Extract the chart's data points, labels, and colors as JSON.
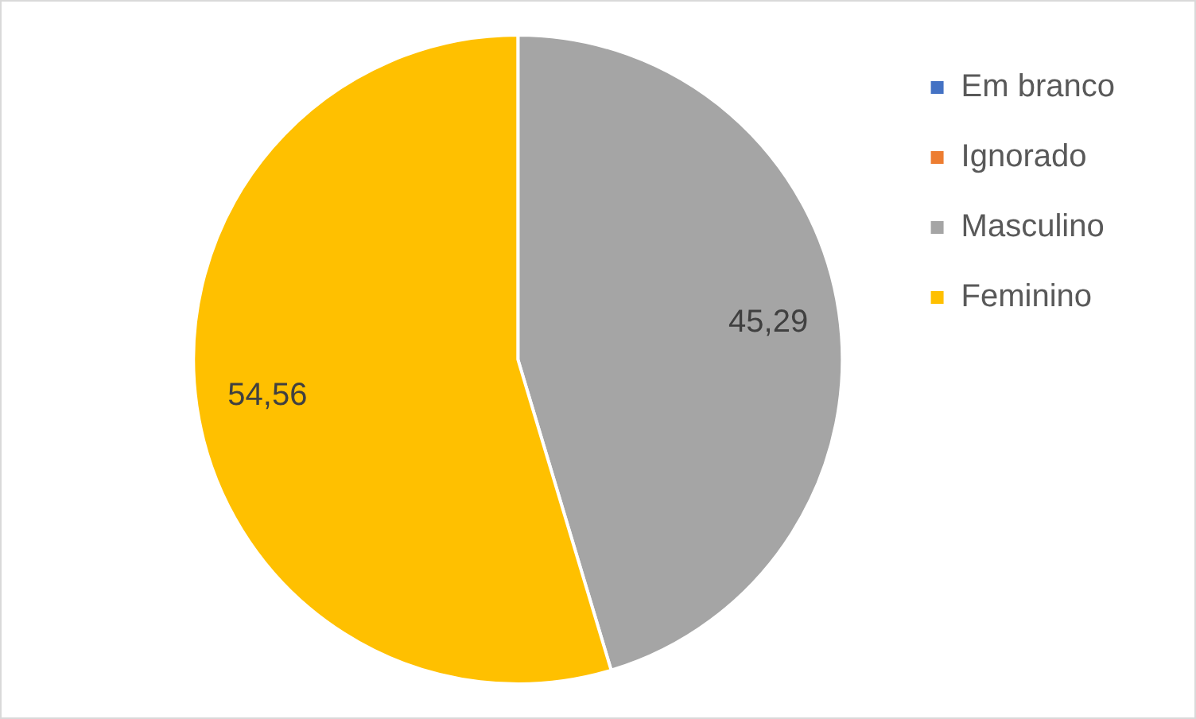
{
  "chart_data": {
    "type": "pie",
    "categories": [
      "Em branco",
      "Ignorado",
      "Masculino",
      "Feminino"
    ],
    "values": [
      0,
      0,
      45.29,
      54.56
    ],
    "value_labels": [
      null,
      null,
      "45,29",
      "54,56"
    ],
    "colors": [
      "#4472c4",
      "#ed7d31",
      "#a5a5a5",
      "#ffc000"
    ],
    "legend": "right"
  }
}
